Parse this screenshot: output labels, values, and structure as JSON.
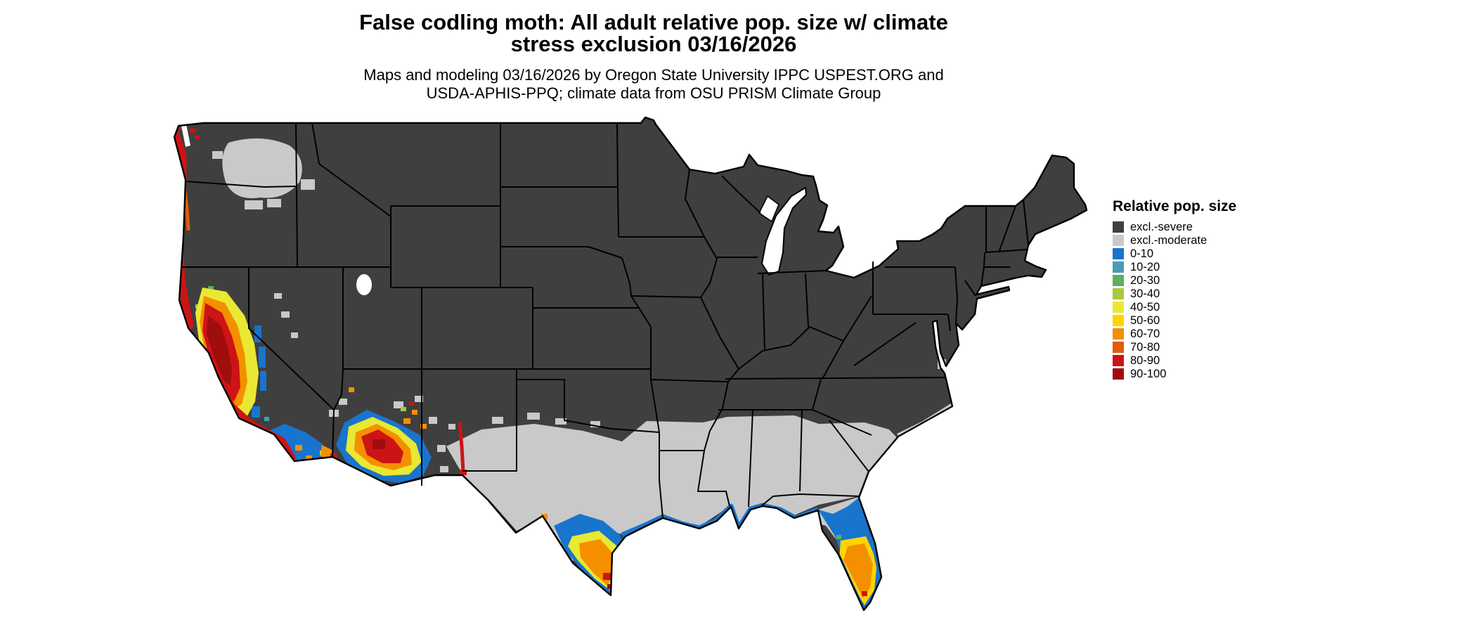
{
  "header": {
    "title_line1": "False codling moth: All adult relative pop. size w/ climate",
    "title_line2": "stress exclusion 03/16/2026",
    "subtitle_line1": "Maps and modeling 03/16/2026 by Oregon State University IPPC USPEST.ORG and",
    "subtitle_line2": "USDA-APHIS-PPQ; climate data from OSU PRISM Climate Group"
  },
  "legend": {
    "title": "Relative pop. size",
    "items": [
      {
        "label": "excl.-severe",
        "color": "#3f3f3f"
      },
      {
        "label": "excl.-moderate",
        "color": "#c9c9c9"
      },
      {
        "label": "0-10",
        "color": "#1874cd"
      },
      {
        "label": "10-20",
        "color": "#4a9bb5"
      },
      {
        "label": "20-30",
        "color": "#5fae5f"
      },
      {
        "label": "30-40",
        "color": "#a9c93f"
      },
      {
        "label": "40-50",
        "color": "#e9e832"
      },
      {
        "label": "50-60",
        "color": "#ffd400"
      },
      {
        "label": "60-70",
        "color": "#f49000"
      },
      {
        "label": "70-80",
        "color": "#e05c0e"
      },
      {
        "label": "80-90",
        "color": "#cd1414"
      },
      {
        "label": "90-100",
        "color": "#a00d0d"
      }
    ]
  },
  "map": {
    "name": "Contiguous United States relative population size map",
    "background": "#ffffff",
    "border_color": "#000000",
    "palette": {
      "excl_severe": "#3f3f3f",
      "excl_moderate": "#c9c9c9",
      "v0_10": "#1874cd",
      "v10_20": "#4a9bb5",
      "v20_30": "#5fae5f",
      "v30_40": "#a9c93f",
      "v40_50": "#e9e832",
      "v50_60": "#ffd400",
      "v60_70": "#f49000",
      "v70_80": "#e05c0e",
      "v80_90": "#cd1414",
      "v90_100": "#a00d0d"
    }
  }
}
